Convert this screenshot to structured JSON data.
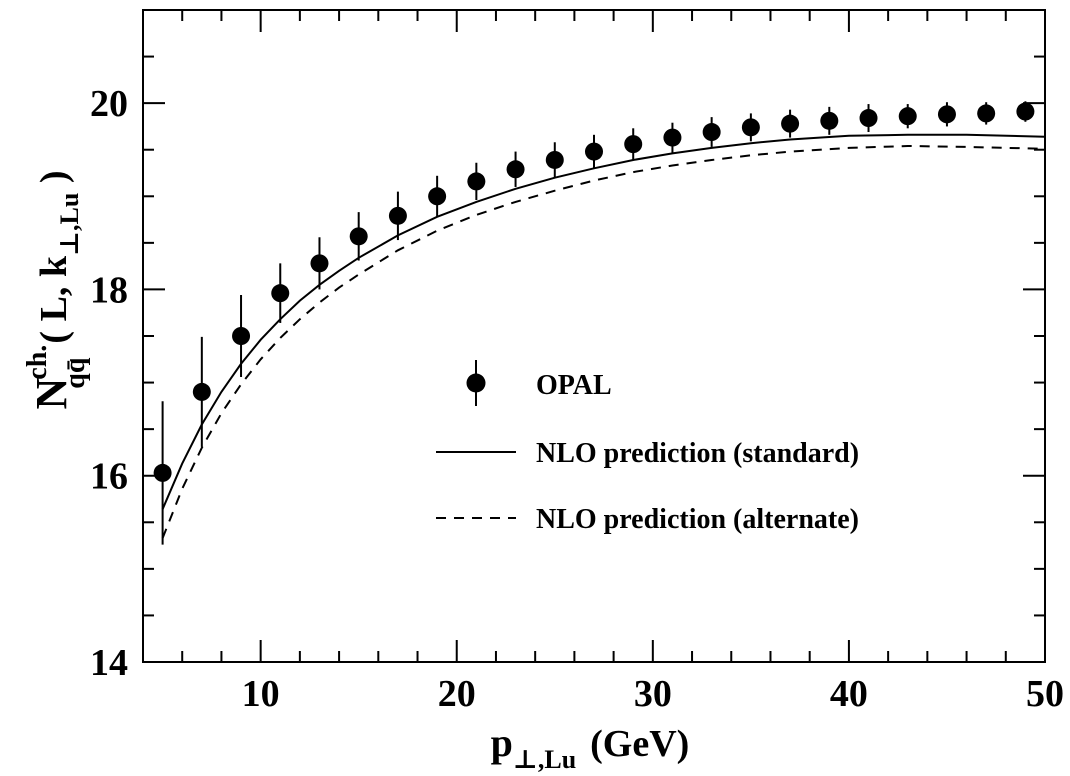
{
  "chart_data": {
    "type": "scatter",
    "xlim": [
      4,
      50
    ],
    "ylim": [
      14,
      21
    ],
    "x_ticks": [
      "10",
      "20",
      "30",
      "40",
      "50"
    ],
    "y_ticks": [
      "14",
      "16",
      "18",
      "20"
    ],
    "xlabel": {
      "main": "p",
      "sub": "⊥,Lu",
      "unit": "(GeV)"
    },
    "ylabel": {
      "main": "N",
      "sup": "ch.",
      "sub": "qq̄",
      "args_open": "( L, k",
      "args_sub": "⊥,Lu",
      "args_close": " )"
    },
    "grid": false,
    "legend_position": "center-right",
    "series": [
      {
        "name": "OPAL",
        "kind": "points",
        "color": "#000000",
        "x": [
          5,
          7,
          9,
          11,
          13,
          15,
          17,
          19,
          21,
          23,
          25,
          27,
          29,
          31,
          33,
          35,
          37,
          39,
          41,
          43,
          45,
          47,
          49
        ],
        "y": [
          16.03,
          16.9,
          17.5,
          17.96,
          18.28,
          18.57,
          18.79,
          19.0,
          19.16,
          19.29,
          19.39,
          19.48,
          19.56,
          19.63,
          19.69,
          19.74,
          19.78,
          19.81,
          19.84,
          19.86,
          19.88,
          19.89,
          19.91
        ],
        "yerr": [
          0.77,
          0.59,
          0.44,
          0.32,
          0.28,
          0.26,
          0.26,
          0.22,
          0.2,
          0.19,
          0.19,
          0.18,
          0.17,
          0.16,
          0.16,
          0.15,
          0.15,
          0.15,
          0.15,
          0.13,
          0.13,
          0.12,
          0.11
        ]
      },
      {
        "name": "NLO prediction (standard)",
        "kind": "line",
        "dash": "solid",
        "color": "#000000",
        "x": [
          5,
          6,
          7,
          8,
          9,
          10,
          11,
          12,
          13,
          14,
          15,
          17,
          19,
          21,
          23,
          25,
          27,
          29,
          31,
          33,
          35,
          37,
          40,
          43,
          46,
          50
        ],
        "y": [
          15.64,
          16.13,
          16.55,
          16.9,
          17.2,
          17.46,
          17.68,
          17.88,
          18.05,
          18.2,
          18.34,
          18.58,
          18.78,
          18.94,
          19.08,
          19.2,
          19.3,
          19.39,
          19.46,
          19.52,
          19.57,
          19.61,
          19.65,
          19.66,
          19.66,
          19.64
        ]
      },
      {
        "name": "NLO prediction (alternate)",
        "kind": "line",
        "dash": "dashed",
        "color": "#000000",
        "x": [
          5,
          6,
          7,
          8,
          9,
          10,
          11,
          12,
          13,
          14,
          15,
          17,
          19,
          21,
          23,
          25,
          27,
          29,
          31,
          33,
          35,
          37,
          40,
          43,
          46,
          50
        ],
        "y": [
          15.33,
          15.86,
          16.3,
          16.67,
          16.98,
          17.25,
          17.48,
          17.68,
          17.86,
          18.02,
          18.16,
          18.42,
          18.63,
          18.8,
          18.94,
          19.06,
          19.17,
          19.26,
          19.33,
          19.39,
          19.44,
          19.48,
          19.52,
          19.54,
          19.53,
          19.51
        ]
      }
    ]
  }
}
